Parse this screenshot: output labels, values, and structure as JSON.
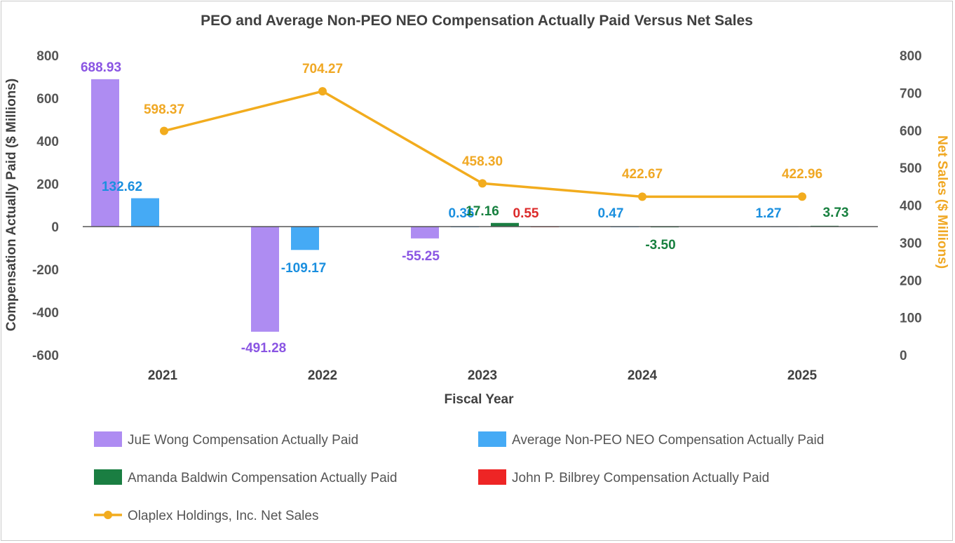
{
  "chart_data": {
    "type": "bar",
    "title": "PEO and Average Non-PEO NEO Compensation Actually Paid Versus Net Sales",
    "xlabel": "Fiscal Year",
    "ylabel": "Compensation Actually Paid ($ Millions)",
    "y2label": "Net Sales ($ Millions)",
    "categories": [
      "2021",
      "2022",
      "2023",
      "2024",
      "2025"
    ],
    "ylim": [
      -600,
      800
    ],
    "yticks": [
      "800",
      "600",
      "400",
      "200",
      "0",
      "-200",
      "-400",
      "-600"
    ],
    "y2lim": [
      0,
      800
    ],
    "y2ticks": [
      "800",
      "700",
      "600",
      "500",
      "400",
      "300",
      "200",
      "100",
      "0"
    ],
    "series": [
      {
        "name": "JuE Wong Compensation Actually Paid",
        "type": "bar",
        "color": "#ae8cf2",
        "label_color": "#8a55e3",
        "values": [
          688.93,
          -491.28,
          -55.25,
          null,
          null
        ],
        "labels": [
          "688.93",
          "-491.28",
          "-55.25",
          "",
          ""
        ]
      },
      {
        "name": "Average Non-PEO NEO Compensation Actually Paid",
        "type": "bar",
        "color": "#45aaf5",
        "label_color": "#1a8fdf",
        "values": [
          132.62,
          -109.17,
          0.36,
          0.47,
          1.27
        ],
        "labels": [
          "132.62",
          "-109.17",
          "0.36",
          "0.47",
          "1.27"
        ]
      },
      {
        "name": "Amanda Baldwin Compensation Actually Paid",
        "type": "bar",
        "color": "#1a7e42",
        "label_color": "#17803f",
        "values": [
          null,
          null,
          17.16,
          -3.5,
          3.73
        ],
        "labels": [
          "",
          "",
          "17.16",
          "-3.50",
          "3.73"
        ]
      },
      {
        "name": "John P. Bilbrey Compensation Actually Paid",
        "type": "bar",
        "color": "#ee2525",
        "label_color": "#dc2a2a",
        "values": [
          null,
          null,
          0.55,
          null,
          null
        ],
        "labels": [
          "",
          "",
          "0.55",
          "",
          ""
        ]
      },
      {
        "name": "Olaplex Holdings, Inc. Net Sales",
        "type": "line",
        "axis": "right",
        "color": "#f2ac1e",
        "label_color": "#f0a824",
        "values": [
          598.37,
          704.27,
          458.3,
          422.67,
          422.96
        ],
        "labels": [
          "598.37",
          "704.27",
          "458.30",
          "422.67",
          "422.96"
        ]
      }
    ],
    "legend_position": "bottom",
    "grid": false
  }
}
